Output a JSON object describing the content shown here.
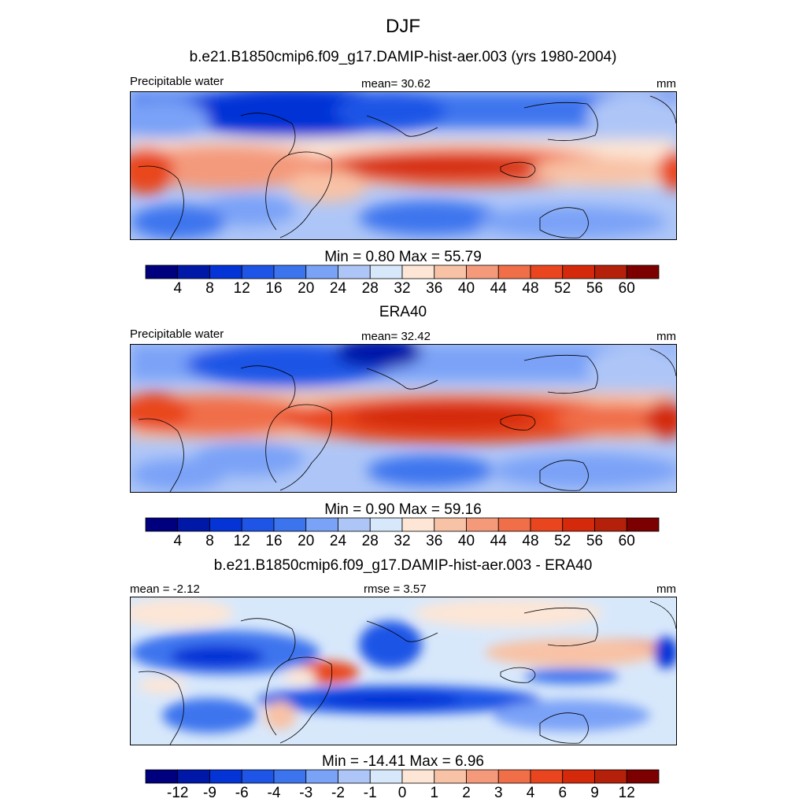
{
  "figure": {
    "title": "DJF",
    "variable": "Precipitable water",
    "units": "mm"
  },
  "panels": [
    {
      "id": "model",
      "title": "b.e21.B1850cmip6.f09_g17.DAMIP-hist-aer.003 (yrs 1980-2004)",
      "left_label": "Precipitable water",
      "center_label": "mean=  30.62",
      "right_label": "mm",
      "minmax": "Min =   0.80 Max =  55.79"
    },
    {
      "id": "obs",
      "title": "ERA40",
      "left_label": "Precipitable water",
      "center_label": "mean=  32.42",
      "right_label": "mm",
      "minmax": "Min =   0.90 Max =  59.16"
    },
    {
      "id": "diff",
      "title": "b.e21.B1850cmip6.f09_g17.DAMIP-hist-aer.003 - ERA40",
      "left_label": "mean =  -2.12",
      "center_label": "rmse =   3.57",
      "right_label": "mm",
      "minmax": "Min = -14.41 Max =   6.96"
    }
  ],
  "chart_data": [
    {
      "type": "heatmap",
      "title": "b.e21.B1850cmip6.f09_g17.DAMIP-hist-aer.003 (yrs 1980-2004)",
      "variable": "Precipitable water",
      "units": "mm",
      "mean": 30.62,
      "min": 0.8,
      "max": 55.79,
      "levels": [
        4,
        8,
        12,
        16,
        20,
        24,
        28,
        32,
        36,
        40,
        44,
        48,
        52,
        56,
        60
      ],
      "colors": [
        "#00007f",
        "#0018a8",
        "#0433d6",
        "#1e55e6",
        "#3c74ee",
        "#7aa2f7",
        "#aec6f7",
        "#d8e8fb",
        "#fde6d6",
        "#f8c2a6",
        "#f49a7b",
        "#f06e48",
        "#e9461f",
        "#d42a0b",
        "#b4200a",
        "#7d0000"
      ]
    },
    {
      "type": "heatmap",
      "title": "ERA40",
      "variable": "Precipitable water",
      "units": "mm",
      "mean": 32.42,
      "min": 0.9,
      "max": 59.16,
      "levels": [
        4,
        8,
        12,
        16,
        20,
        24,
        28,
        32,
        36,
        40,
        44,
        48,
        52,
        56,
        60
      ],
      "colors": [
        "#00007f",
        "#0018a8",
        "#0433d6",
        "#1e55e6",
        "#3c74ee",
        "#7aa2f7",
        "#aec6f7",
        "#d8e8fb",
        "#fde6d6",
        "#f8c2a6",
        "#f49a7b",
        "#f06e48",
        "#e9461f",
        "#d42a0b",
        "#b4200a",
        "#7d0000"
      ]
    },
    {
      "type": "heatmap",
      "title": "b.e21.B1850cmip6.f09_g17.DAMIP-hist-aer.003 - ERA40",
      "units": "mm",
      "mean": -2.12,
      "rmse": 3.57,
      "min": -14.41,
      "max": 6.96,
      "levels": [
        -12,
        -9,
        -6,
        -4,
        -3,
        -2,
        -1,
        0,
        1,
        2,
        3,
        4,
        6,
        9,
        12
      ],
      "colors": [
        "#00007f",
        "#0018a8",
        "#0433d6",
        "#1e55e6",
        "#3c74ee",
        "#7aa2f7",
        "#aec6f7",
        "#d8e8fb",
        "#fde6d6",
        "#f8c2a6",
        "#f49a7b",
        "#f06e48",
        "#e9461f",
        "#d42a0b",
        "#b4200a",
        "#7d0000"
      ]
    }
  ]
}
